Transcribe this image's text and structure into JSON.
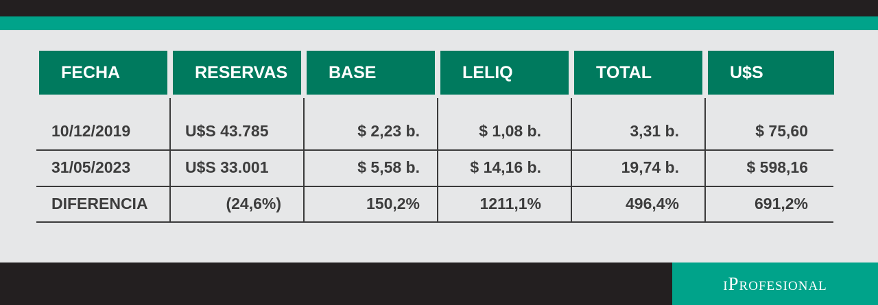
{
  "table": {
    "headers": [
      "FECHA",
      "RESERVAS",
      "BASE",
      "LELIQ",
      "TOTAL",
      "U$S"
    ],
    "rows": [
      [
        "10/12/2019",
        "U$S 43.785",
        "$ 2,23 b.",
        "$ 1,08 b.",
        "3,31 b.",
        "$ 75,60"
      ],
      [
        "31/05/2023",
        "U$S 33.001",
        "$ 5,58 b.",
        "$ 14,16 b.",
        "19,74 b.",
        "$ 598,16"
      ],
      [
        "DIFERENCIA",
        "(24,6%)",
        "150,2%",
        "1211,1%",
        "496,4%",
        "691,2%"
      ]
    ]
  },
  "brand": {
    "name": "iProfesional"
  },
  "colors": {
    "header_bg": "#007a5e",
    "accent": "#00a38a",
    "dark": "#231f20",
    "background": "#e6e7e8",
    "text": "#3d3d3d"
  }
}
